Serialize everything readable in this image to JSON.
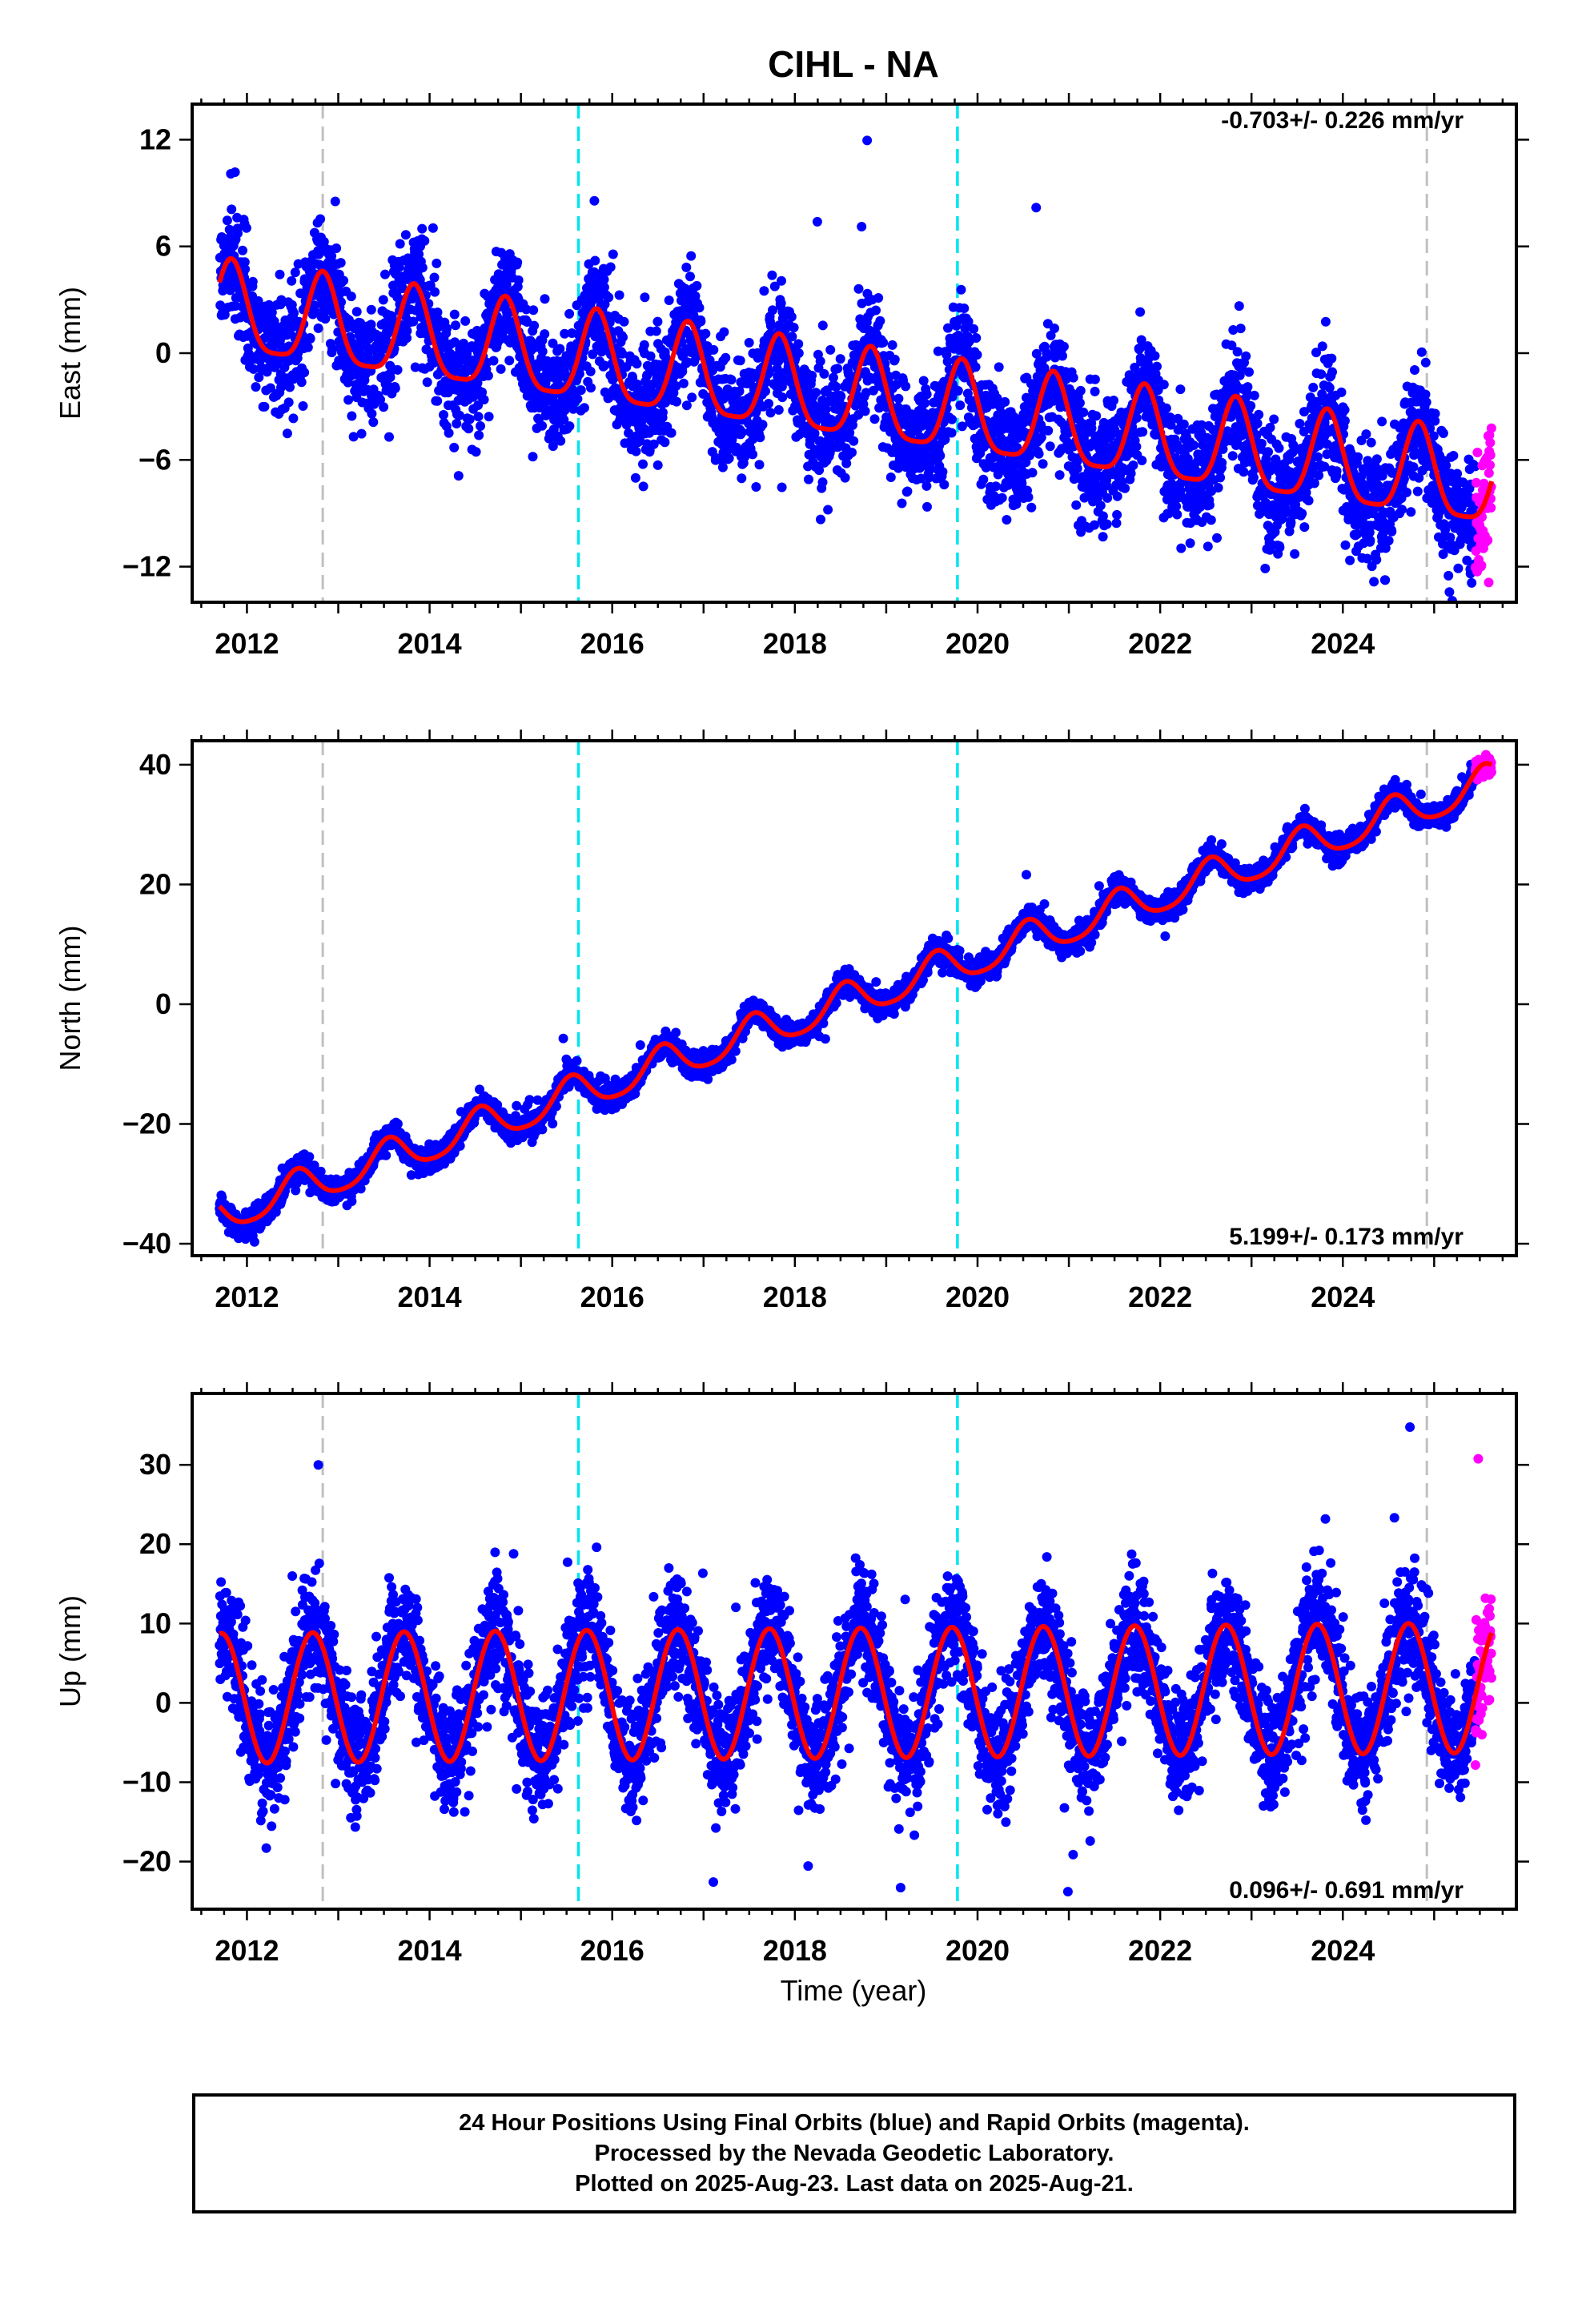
{
  "title": "CIHL - NA",
  "xlabel": "Time (year)",
  "footer": {
    "line1": "24 Hour Positions Using Final Orbits (blue) and Rapid Orbits (magenta).",
    "line2": "Processed by the Nevada Geodetic Laboratory.",
    "line3": "Plotted on 2025-Aug-23. Last data on 2025-Aug-21."
  },
  "colors": {
    "final_orbits": "#0000ff",
    "rapid_orbits": "#ff00ff",
    "model": "#ff0000",
    "equipment_change": "#c0c0c0",
    "earthquake": "#00e5ee"
  },
  "chart_data": [
    {
      "type": "scatter",
      "ylabel": "East (mm)",
      "rate_label": "-0.703+/- 0.226 mm/yr",
      "rate_position": "top-right",
      "xlim": [
        2011.4,
        2025.9
      ],
      "ylim": [
        -14,
        14
      ],
      "x_ticks": [
        2012,
        2014,
        2016,
        2018,
        2020,
        2022,
        2024
      ],
      "y_ticks": [
        -12,
        -6,
        0,
        6,
        12
      ],
      "data_start": 2011.7,
      "data_end": 2025.63,
      "rapid_start": 2025.45,
      "model": {
        "intercept_at_2011": 2.8,
        "rate_mm_per_yr": -0.703,
        "annual_amplitude": 2.5,
        "annual_peak_fraction": 0.83,
        "semiannual_amplitude": 0.6,
        "scatter_sd": 1.6
      },
      "vertical_lines": {
        "gray": [
          2012.83,
          2024.92
        ],
        "cyan": [
          2015.63,
          2019.78
        ]
      }
    },
    {
      "type": "scatter",
      "ylabel": "North (mm)",
      "rate_label": "5.199+/- 0.173 mm/yr",
      "rate_position": "bottom-right",
      "xlim": [
        2011.4,
        2025.9
      ],
      "ylim": [
        -42,
        44
      ],
      "x_ticks": [
        2012,
        2014,
        2016,
        2018,
        2020,
        2022,
        2024
      ],
      "y_ticks": [
        -40,
        -20,
        0,
        20,
        40
      ],
      "data_start": 2011.7,
      "data_end": 2025.63,
      "rapid_start": 2025.45,
      "model": {
        "intercept_at_2011": -39.0,
        "rate_mm_per_yr": 5.199,
        "annual_amplitude": 3.0,
        "annual_peak_fraction": 0.55,
        "semiannual_amplitude": 0.5,
        "scatter_sd": 1.0
      },
      "vertical_lines": {
        "gray": [
          2012.83,
          2024.92
        ],
        "cyan": [
          2015.63,
          2019.78
        ]
      }
    },
    {
      "type": "scatter",
      "ylabel": "Up (mm)",
      "rate_label": "0.096+/- 0.691 mm/yr",
      "rate_position": "bottom-right",
      "xlim": [
        2011.4,
        2025.9
      ],
      "ylim": [
        -26,
        39
      ],
      "x_ticks": [
        2012,
        2014,
        2016,
        2018,
        2020,
        2022,
        2024
      ],
      "y_ticks": [
        -20,
        -10,
        0,
        10,
        20,
        30
      ],
      "data_start": 2011.7,
      "data_end": 2025.63,
      "rapid_start": 2025.45,
      "model": {
        "intercept_at_2011": 0.5,
        "rate_mm_per_yr": 0.096,
        "annual_amplitude": 8.2,
        "annual_peak_fraction": 0.72,
        "semiannual_amplitude": 0.0,
        "scatter_sd": 3.6
      },
      "vertical_lines": {
        "gray": [
          2012.83,
          2024.92
        ],
        "cyan": [
          2015.63,
          2019.78
        ]
      }
    }
  ]
}
